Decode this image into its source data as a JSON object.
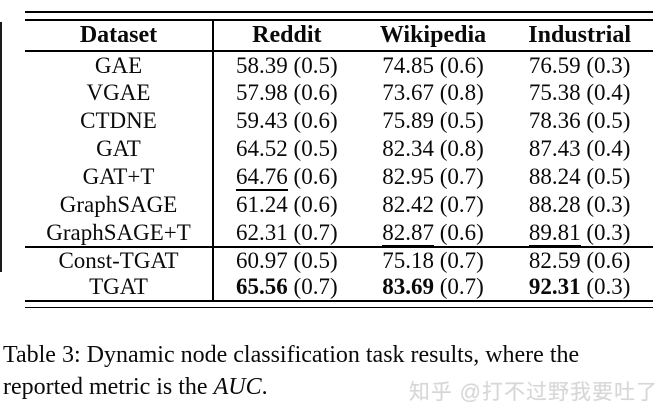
{
  "table": {
    "columns": [
      "Dataset",
      "Reddit",
      "Wikipedia",
      "Industrial"
    ],
    "rows": [
      {
        "dataset": "GAE",
        "cells": [
          {
            "value": "58.39",
            "std": "(0.5)"
          },
          {
            "value": "74.85",
            "std": "(0.6)"
          },
          {
            "value": "76.59",
            "std": "(0.3)"
          }
        ]
      },
      {
        "dataset": "VGAE",
        "cells": [
          {
            "value": "57.98",
            "std": "(0.6)"
          },
          {
            "value": "73.67",
            "std": "(0.8)"
          },
          {
            "value": "75.38",
            "std": "(0.4)"
          }
        ]
      },
      {
        "dataset": "CTDNE",
        "cells": [
          {
            "value": "59.43",
            "std": "(0.6)"
          },
          {
            "value": "75.89",
            "std": "(0.5)"
          },
          {
            "value": "78.36",
            "std": "(0.5)"
          }
        ]
      },
      {
        "dataset": "GAT",
        "cells": [
          {
            "value": "64.52",
            "std": "(0.5)"
          },
          {
            "value": "82.34",
            "std": "(0.8)"
          },
          {
            "value": "87.43",
            "std": "(0.4)"
          }
        ]
      },
      {
        "dataset": "GAT+T",
        "cells": [
          {
            "value": "64.76",
            "std": "(0.6)",
            "underline": true
          },
          {
            "value": "82.95",
            "std": "(0.7)"
          },
          {
            "value": "88.24",
            "std": "(0.5)"
          }
        ]
      },
      {
        "dataset": "GraphSAGE",
        "cells": [
          {
            "value": "61.24",
            "std": "(0.6)"
          },
          {
            "value": "82.42",
            "std": "(0.7)"
          },
          {
            "value": "88.28",
            "std": "(0.3)"
          }
        ]
      },
      {
        "dataset": "GraphSAGE+T",
        "cells": [
          {
            "value": "62.31",
            "std": "(0.7)"
          },
          {
            "value": "82.87",
            "std": "(0.6)",
            "underline": true
          },
          {
            "value": "89.81",
            "std": "(0.3)",
            "underline": true
          }
        ]
      },
      {
        "dataset": "Const-TGAT",
        "section_break": true,
        "compact": true,
        "cells": [
          {
            "value": "60.97",
            "std": "(0.5)"
          },
          {
            "value": "75.18",
            "std": "(0.7)"
          },
          {
            "value": "82.59",
            "std": "(0.6)"
          }
        ]
      },
      {
        "dataset": "TGAT",
        "compact": true,
        "cells": [
          {
            "value": "65.56",
            "std": "(0.7)",
            "bold": true
          },
          {
            "value": "83.69",
            "std": "(0.7)",
            "bold": true
          },
          {
            "value": "92.31",
            "std": "(0.3)",
            "bold": true
          }
        ]
      }
    ]
  },
  "caption": {
    "line1": "Table 3: Dynamic node classification task results, where the",
    "line2_before": "reported metric is the ",
    "metric_italic": "AUC",
    "line2_after": "."
  },
  "watermark": {
    "text": "知乎 @打不过野我要吐了"
  },
  "colors": {
    "rule": "#000000",
    "text": "#0a0a0a",
    "watermark": "#d7d7d7",
    "background": "#ffffff"
  }
}
